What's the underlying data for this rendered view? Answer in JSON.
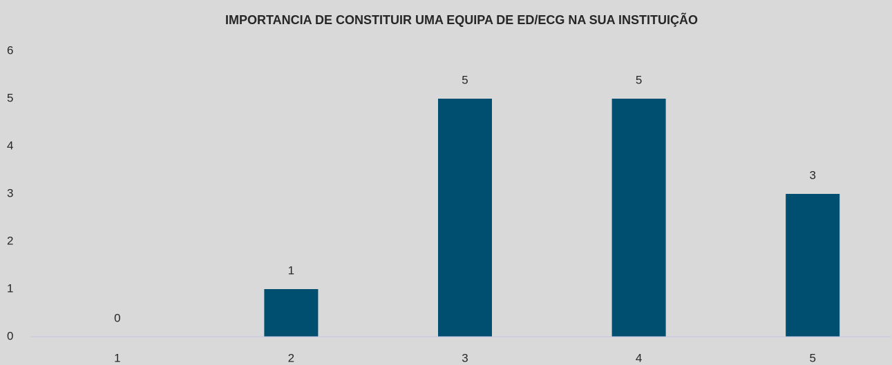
{
  "chart_data": {
    "type": "bar",
    "title": "IMPORTANCIA DE CONSTITUIR UMA EQUIPA DE ED/ECG NA SUA INSTITUIÇÃO",
    "categories": [
      "1",
      "2",
      "3",
      "4",
      "5"
    ],
    "values": [
      0,
      1,
      5,
      5,
      3
    ],
    "color": "#004f71",
    "ylim": [
      0,
      6
    ],
    "yticks": [
      0,
      1,
      2,
      3,
      4,
      5,
      6
    ],
    "grid": false,
    "data_labels": true
  }
}
